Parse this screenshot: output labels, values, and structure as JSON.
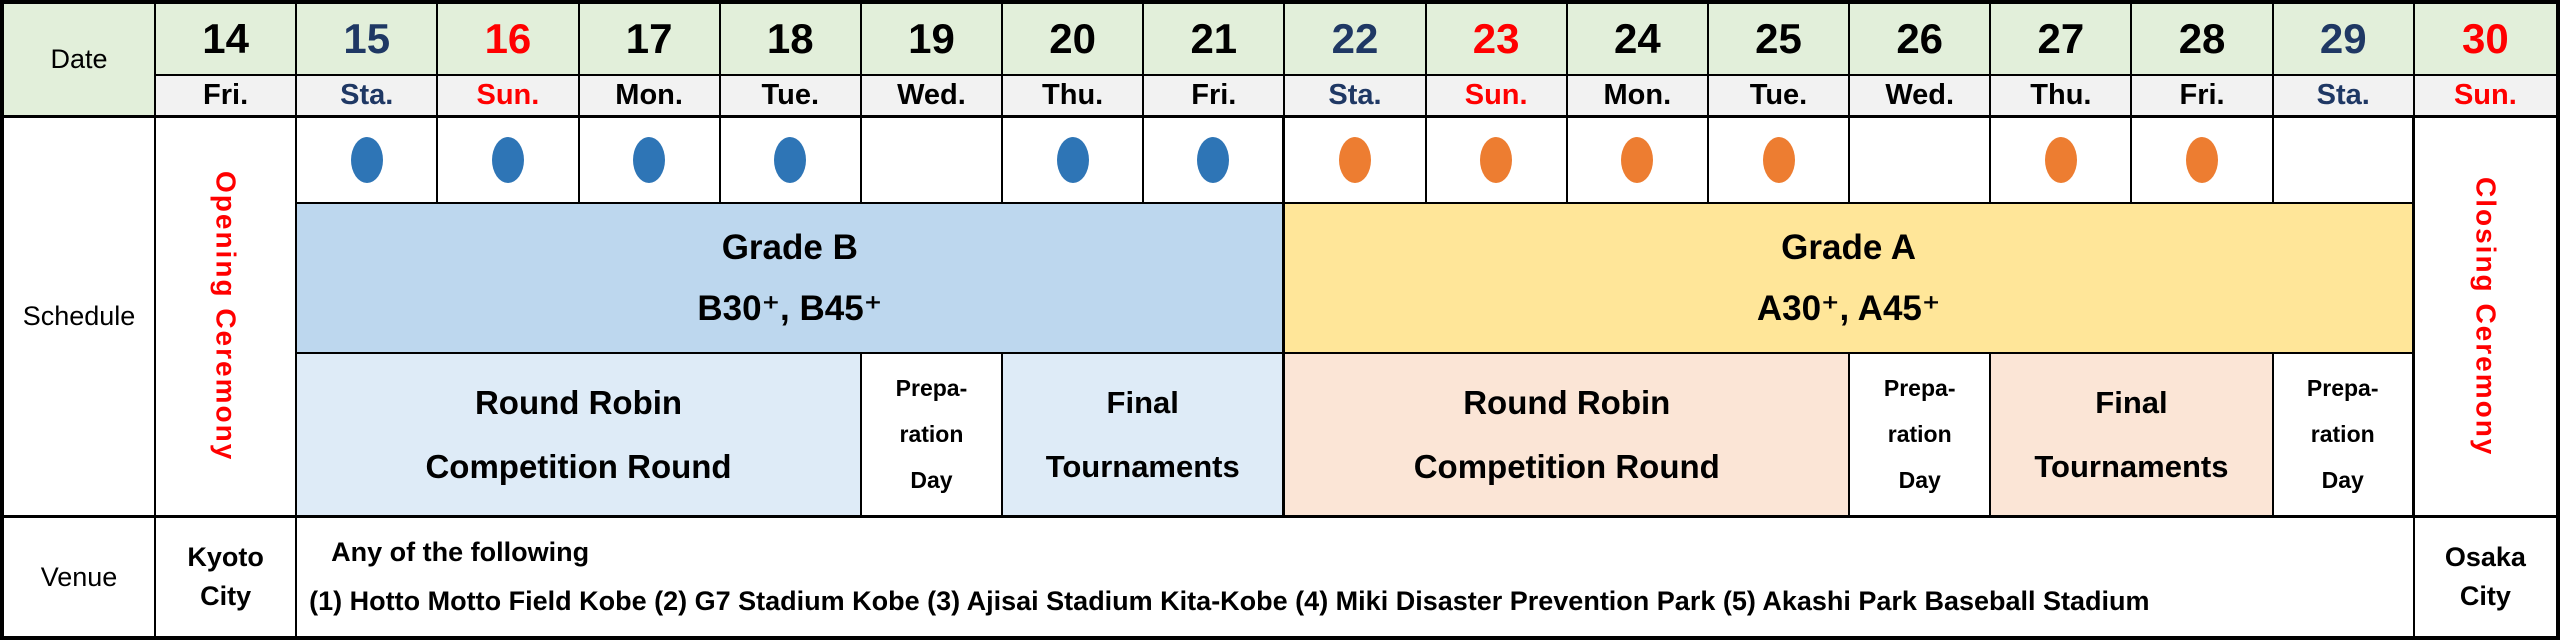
{
  "row_labels": {
    "date": "Date",
    "schedule": "Schedule",
    "venue": "Venue"
  },
  "dates": [
    {
      "day": "14",
      "dow": "Fri.",
      "color": "black"
    },
    {
      "day": "15",
      "dow": "Sta.",
      "color": "navy"
    },
    {
      "day": "16",
      "dow": "Sun.",
      "color": "red"
    },
    {
      "day": "17",
      "dow": "Mon.",
      "color": "black"
    },
    {
      "day": "18",
      "dow": "Tue.",
      "color": "black"
    },
    {
      "day": "19",
      "dow": "Wed.",
      "color": "black"
    },
    {
      "day": "20",
      "dow": "Thu.",
      "color": "black"
    },
    {
      "day": "21",
      "dow": "Fri.",
      "color": "black"
    },
    {
      "day": "22",
      "dow": "Sta.",
      "color": "navy"
    },
    {
      "day": "23",
      "dow": "Sun.",
      "color": "red"
    },
    {
      "day": "24",
      "dow": "Mon.",
      "color": "black"
    },
    {
      "day": "25",
      "dow": "Tue.",
      "color": "black"
    },
    {
      "day": "26",
      "dow": "Wed.",
      "color": "black"
    },
    {
      "day": "27",
      "dow": "Thu.",
      "color": "black"
    },
    {
      "day": "28",
      "dow": "Fri.",
      "color": "black"
    },
    {
      "day": "29",
      "dow": "Sta.",
      "color": "navy"
    },
    {
      "day": "30",
      "dow": "Sun.",
      "color": "red"
    }
  ],
  "dots": [
    "blue",
    "blue",
    "blue",
    "blue",
    "none",
    "blue",
    "blue",
    "orange",
    "orange",
    "orange",
    "orange",
    "none",
    "orange",
    "orange",
    "none"
  ],
  "ceremonies": {
    "opening": "Opening Ceremony",
    "closing": "Closing Ceremony"
  },
  "grade_b": {
    "title": "Grade B",
    "classes": "B30⁺、B45⁺"
  },
  "grade_a": {
    "title": "Grade A",
    "classes": "A30⁺、A45⁺"
  },
  "phases": {
    "round_robin": [
      "Round Robin",
      "Competition Round"
    ],
    "preparation": [
      "Prepa-",
      "ration",
      "Day"
    ],
    "final": [
      "Final",
      "Tournaments"
    ]
  },
  "venue": {
    "kyoto": [
      "Kyoto",
      "City"
    ],
    "osaka": [
      "Osaka",
      "City"
    ],
    "intro": "Any of the following",
    "options": "(1) Hotto Motto Field Kobe (2) G7 Stadium Kobe (3) Ajisai Stadium Kita-Kobe (4) Miki Disaster Prevention Park (5) Akashi Park Baseball Stadium"
  },
  "palette": {
    "weekday_black": "#000000",
    "saturday_navy": "#1F3864",
    "sunday_red": "#FF0000",
    "header_green": "#E2EFDA",
    "day_row_gray": "#F2F2F2",
    "dot_blue": "#2E75B6",
    "dot_orange": "#ED7D31",
    "grade_b_fill": "#BDD7EE",
    "grade_a_fill": "#FFE699",
    "phase_b_fill": "#DEEBF7",
    "phase_a_fill": "#FBE5D6",
    "ceremony_red": "#FF0000"
  }
}
